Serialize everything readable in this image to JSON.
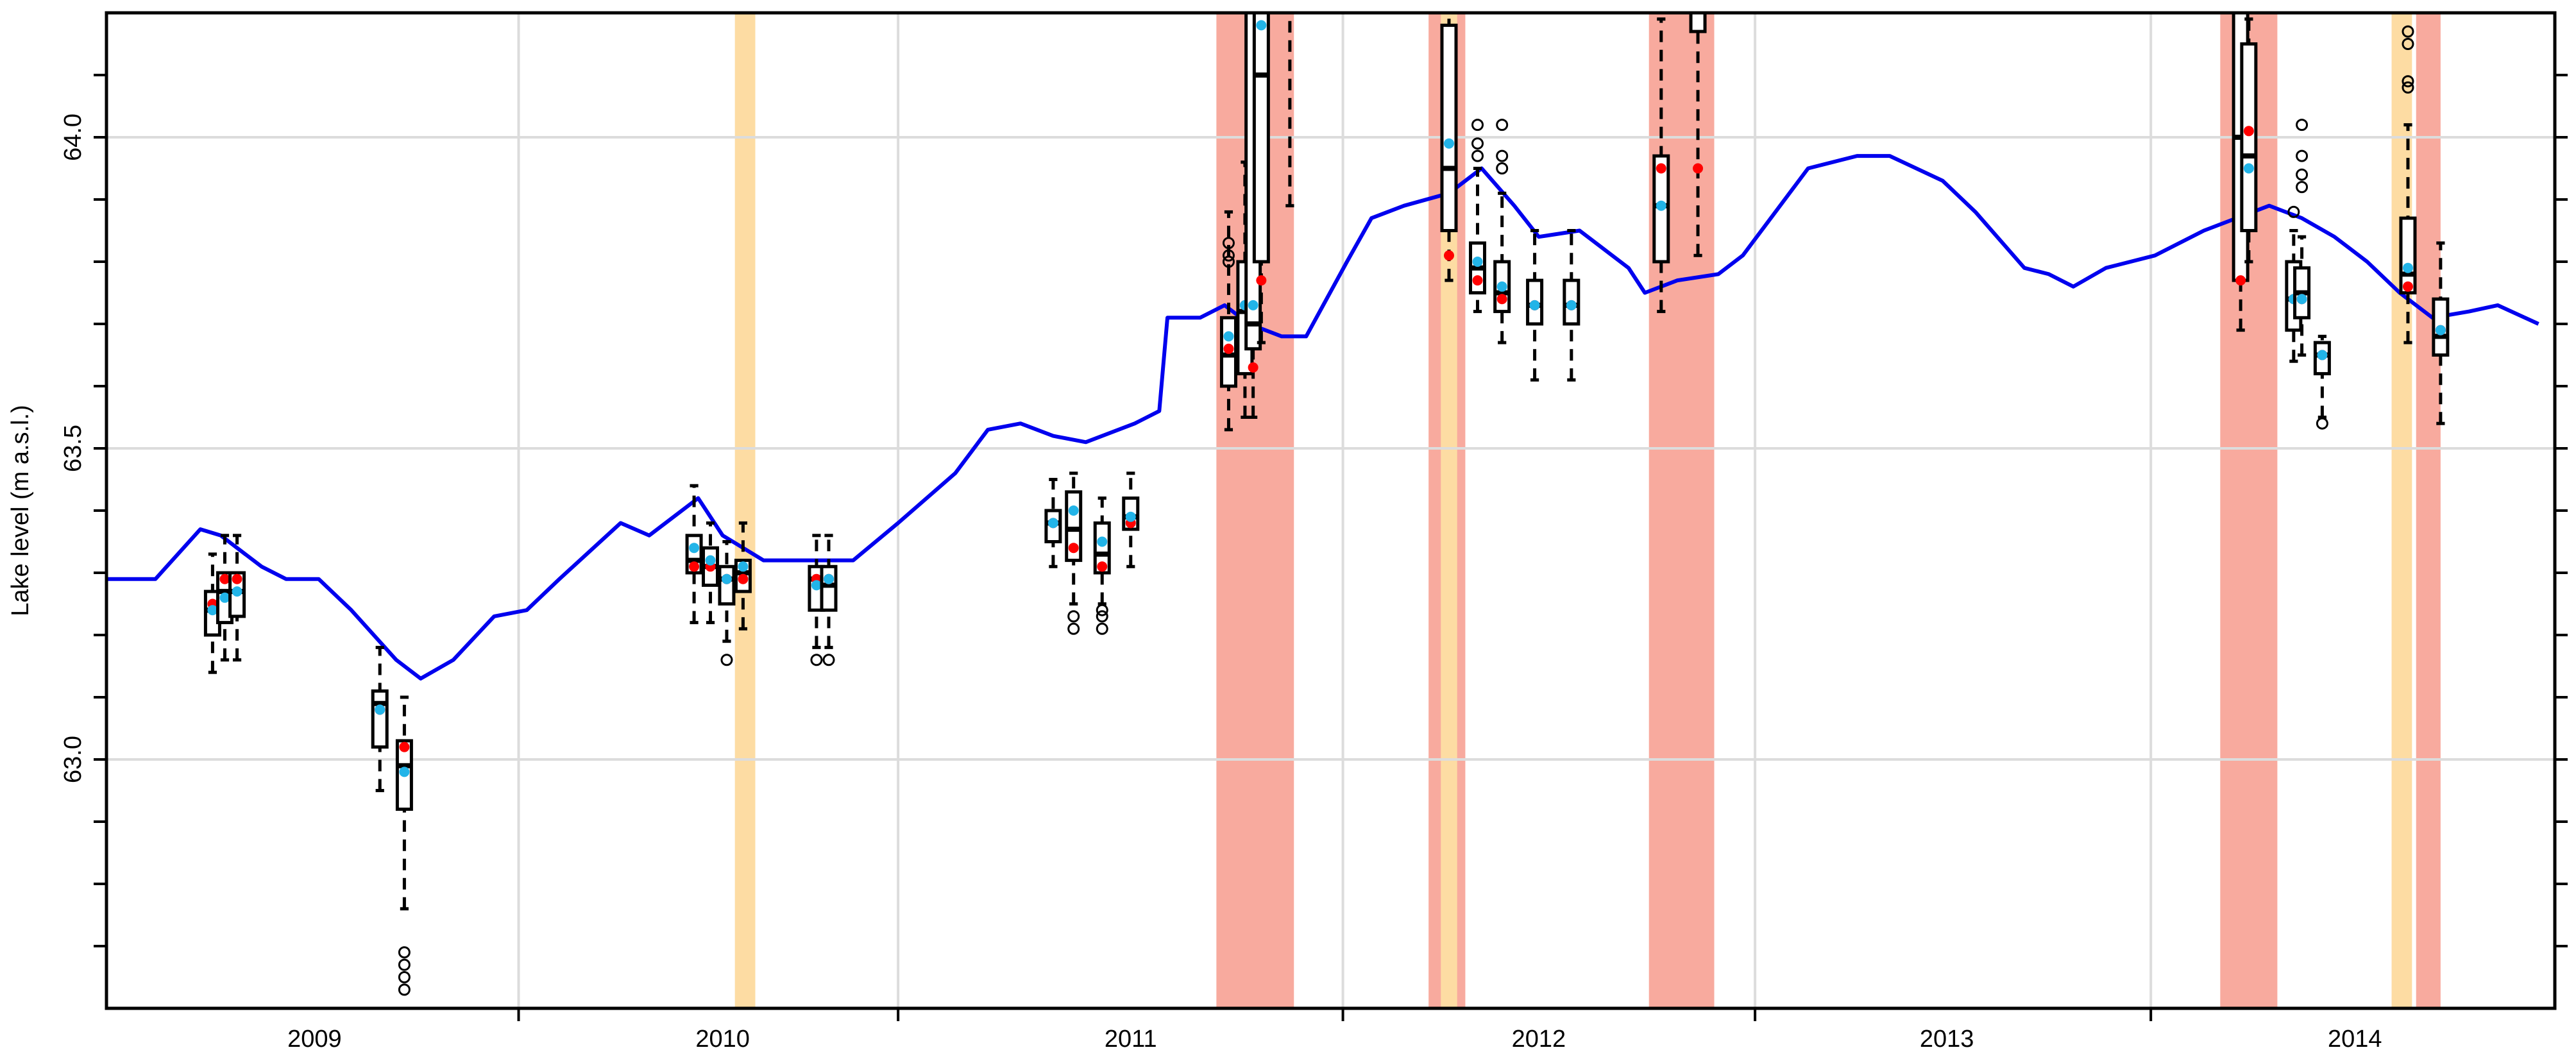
{
  "chart_data": {
    "type": "line",
    "y_label": "Lake level (m a.s.l.)",
    "xlim": [
      2008.49,
      2014.49
    ],
    "ylim": [
      62.6,
      64.2
    ],
    "xticks": [
      2009,
      2010,
      2011,
      2012,
      2013,
      2014
    ],
    "x_boundaries": [
      2009.5,
      2010.43,
      2011.52,
      2012.53,
      2013.5
    ],
    "yticks": [
      {
        "value": 63,
        "label": "63.0"
      },
      {
        "value": 63.5,
        "label": "63.5"
      },
      {
        "value": 64,
        "label": "64.0"
      }
    ],
    "yticks_minor": [
      62.7,
      62.8,
      62.9,
      63.1,
      63.2,
      63.3,
      63.4,
      63.6,
      63.7,
      63.8,
      63.9,
      64.1
    ],
    "grid": true,
    "line": {
      "color": "#0000ee",
      "x": [
        2008.49,
        2008.61,
        2008.72,
        2008.77,
        2008.87,
        2008.93,
        2009.01,
        2009.09,
        2009.2,
        2009.26,
        2009.34,
        2009.44,
        2009.52,
        2009.6,
        2009.75,
        2009.82,
        2009.94,
        2010.0,
        2010.1,
        2010.16,
        2010.32,
        2010.43,
        2010.57,
        2010.65,
        2010.73,
        2010.81,
        2010.89,
        2011.01,
        2011.07,
        2011.09,
        2011.17,
        2011.23,
        2011.29,
        2011.37,
        2011.43,
        2011.53,
        2011.59,
        2011.67,
        2011.78,
        2011.86,
        2011.94,
        2012.0,
        2012.1,
        2012.22,
        2012.26,
        2012.34,
        2012.44,
        2012.5,
        2012.58,
        2012.66,
        2012.78,
        2012.86,
        2012.99,
        2013.07,
        2013.19,
        2013.25,
        2013.31,
        2013.39,
        2013.51,
        2013.63,
        2013.79,
        2013.87,
        2013.95,
        2014.03,
        2014.11,
        2014.19,
        2014.28,
        2014.35,
        2014.45
      ],
      "values": [
        63.29,
        63.29,
        63.37,
        63.36,
        63.31,
        63.29,
        63.29,
        63.24,
        63.16,
        63.13,
        63.16,
        63.23,
        63.24,
        63.29,
        63.38,
        63.36,
        63.42,
        63.36,
        63.32,
        63.32,
        63.32,
        63.38,
        63.46,
        63.53,
        63.54,
        63.52,
        63.51,
        63.54,
        63.56,
        63.71,
        63.71,
        63.73,
        63.7,
        63.68,
        63.68,
        63.8,
        63.87,
        63.89,
        63.91,
        63.95,
        63.89,
        63.84,
        63.85,
        63.79,
        63.75,
        63.77,
        63.78,
        63.81,
        63.88,
        63.95,
        63.97,
        63.97,
        63.93,
        63.88,
        63.79,
        63.78,
        63.76,
        63.79,
        63.81,
        63.85,
        63.89,
        63.87,
        63.84,
        63.8,
        63.75,
        63.71,
        63.72,
        63.73,
        63.7
      ]
    },
    "shaded_periods": [
      {
        "start": 2011.21,
        "end": 2011.4,
        "color": "#f8aa9e"
      },
      {
        "start": 2011.73,
        "end": 2011.82,
        "color": "#f8aa9e"
      },
      {
        "start": 2012.27,
        "end": 2012.43,
        "color": "#f8aa9e"
      },
      {
        "start": 2013.67,
        "end": 2013.81,
        "color": "#f8aa9e"
      },
      {
        "start": 2014.15,
        "end": 2014.21,
        "color": "#f8aa9e"
      },
      {
        "start": 2010.03,
        "end": 2010.08,
        "color": "#fddca3"
      },
      {
        "start": 2011.76,
        "end": 2011.8,
        "color": "#fddca3"
      },
      {
        "start": 2014.09,
        "end": 2014.14,
        "color": "#fddca3"
      }
    ],
    "red_dot_color": "#ff0000",
    "blue_dot_color": "#22b4e8",
    "boxplots": [
      {
        "x": 2008.75,
        "low": 63.14,
        "q1": 63.2,
        "median": 63.24,
        "q3": 63.27,
        "high": 63.33,
        "red": 63.25,
        "blue": 63.24,
        "outliers": []
      },
      {
        "x": 2008.78,
        "low": 63.16,
        "q1": 63.22,
        "median": 63.27,
        "q3": 63.3,
        "high": 63.36,
        "red": 63.29,
        "blue": 63.26,
        "outliers": []
      },
      {
        "x": 2008.81,
        "low": 63.16,
        "q1": 63.23,
        "median": 63.27,
        "q3": 63.3,
        "high": 63.36,
        "red": 63.29,
        "blue": 63.27,
        "outliers": []
      },
      {
        "x": 2009.16,
        "low": 62.95,
        "q1": 63.02,
        "median": 63.09,
        "q3": 63.11,
        "high": 63.18,
        "red": 63.08,
        "blue": 63.08,
        "outliers": []
      },
      {
        "x": 2009.22,
        "low": 62.76,
        "q1": 62.92,
        "median": 62.99,
        "q3": 63.03,
        "high": 63.1,
        "red": 63.02,
        "blue": 62.98,
        "outliers": [
          62.69,
          62.67,
          62.65,
          62.63
        ]
      },
      {
        "x": 2009.93,
        "low": 63.22,
        "q1": 63.3,
        "median": 63.32,
        "q3": 63.36,
        "high": 63.44,
        "red": 63.31,
        "blue": 63.34,
        "outliers": []
      },
      {
        "x": 2009.97,
        "low": 63.22,
        "q1": 63.28,
        "median": 63.31,
        "q3": 63.34,
        "high": 63.38,
        "red": 63.31,
        "blue": 63.32,
        "outliers": []
      },
      {
        "x": 2010.01,
        "low": 63.19,
        "q1": 63.25,
        "median": 63.29,
        "q3": 63.31,
        "high": 63.35,
        "red": 63.29,
        "blue": 63.29,
        "outliers": [
          63.16
        ]
      },
      {
        "x": 2010.05,
        "low": 63.21,
        "q1": 63.27,
        "median": 63.3,
        "q3": 63.32,
        "high": 63.38,
        "red": 63.29,
        "blue": 63.31,
        "outliers": []
      },
      {
        "x": 2010.23,
        "low": 63.18,
        "q1": 63.24,
        "median": 63.29,
        "q3": 63.31,
        "high": 63.36,
        "red": 63.29,
        "blue": 63.28,
        "outliers": [
          63.16
        ]
      },
      {
        "x": 2010.26,
        "low": 63.18,
        "q1": 63.24,
        "median": 63.28,
        "q3": 63.31,
        "high": 63.36,
        "red": 63.29,
        "blue": 63.29,
        "outliers": [
          63.16
        ]
      },
      {
        "x": 2010.81,
        "low": 63.31,
        "q1": 63.35,
        "median": 63.38,
        "q3": 63.4,
        "high": 63.45,
        "red": 63.38,
        "blue": 63.38,
        "outliers": []
      },
      {
        "x": 2010.86,
        "low": 63.25,
        "q1": 63.32,
        "median": 63.37,
        "q3": 63.43,
        "high": 63.46,
        "red": 63.34,
        "blue": 63.4,
        "outliers": [
          63.23,
          63.21
        ]
      },
      {
        "x": 2010.93,
        "low": 63.25,
        "q1": 63.3,
        "median": 63.33,
        "q3": 63.38,
        "high": 63.42,
        "red": 63.31,
        "blue": 63.35,
        "outliers": [
          63.24,
          63.23,
          63.21
        ]
      },
      {
        "x": 2011.0,
        "low": 63.31,
        "q1": 63.37,
        "median": 63.39,
        "q3": 63.42,
        "high": 63.46,
        "red": 63.38,
        "blue": 63.39,
        "outliers": []
      },
      {
        "x": 2011.24,
        "low": 63.53,
        "q1": 63.6,
        "median": 63.65,
        "q3": 63.71,
        "high": 63.88,
        "red": 63.66,
        "blue": 63.68,
        "outliers": [
          63.83,
          63.81,
          63.8
        ]
      },
      {
        "x": 2011.28,
        "low": 63.55,
        "q1": 63.62,
        "median": 63.72,
        "q3": 63.8,
        "high": 63.96,
        "red": 63.73,
        "blue": 63.73,
        "outliers": []
      },
      {
        "x": 2011.3,
        "low": 63.55,
        "q1": 63.66,
        "median": 63.7,
        "q3": 64.3,
        "high": 64.5,
        "red": 63.63,
        "blue": 63.73,
        "outliers": []
      },
      {
        "x": 2011.32,
        "low": 63.67,
        "q1": 63.8,
        "median": 64.1,
        "q3": 64.3,
        "high": 64.5,
        "red": 63.77,
        "blue": 64.18,
        "outliers": []
      },
      {
        "x": 2011.39,
        "low": 63.89,
        "q1": 64.25,
        "median": 64.3,
        "q3": 64.35,
        "high": 64.4,
        "red": null,
        "blue": null,
        "outliers": []
      },
      {
        "x": 2011.78,
        "low": 63.77,
        "q1": 63.85,
        "median": 63.95,
        "q3": 64.18,
        "high": 64.3,
        "red": 63.81,
        "blue": 63.99,
        "outliers": []
      },
      {
        "x": 2011.85,
        "low": 63.72,
        "q1": 63.75,
        "median": 63.79,
        "q3": 63.83,
        "high": 63.95,
        "red": 63.77,
        "blue": 63.8,
        "outliers": [
          64.02,
          63.99,
          63.97
        ]
      },
      {
        "x": 2011.91,
        "low": 63.67,
        "q1": 63.72,
        "median": 63.75,
        "q3": 63.8,
        "high": 63.91,
        "red": 63.74,
        "blue": 63.76,
        "outliers": [
          64.02,
          63.97,
          63.95
        ]
      },
      {
        "x": 2011.99,
        "low": 63.61,
        "q1": 63.7,
        "median": 63.73,
        "q3": 63.77,
        "high": 63.85,
        "red": 63.73,
        "blue": 63.73,
        "outliers": []
      },
      {
        "x": 2012.08,
        "low": 63.61,
        "q1": 63.7,
        "median": 63.73,
        "q3": 63.77,
        "high": 63.85,
        "red": 63.73,
        "blue": 63.73,
        "outliers": []
      },
      {
        "x": 2012.3,
        "low": 63.72,
        "q1": 63.8,
        "median": 63.89,
        "q3": 63.97,
        "high": 64.19,
        "red": 63.95,
        "blue": 63.89,
        "outliers": []
      },
      {
        "x": 2012.39,
        "low": 63.81,
        "q1": 64.17,
        "median": 64.25,
        "q3": 64.3,
        "high": 64.4,
        "red": 63.95,
        "blue": null,
        "outliers": []
      },
      {
        "x": 2013.72,
        "low": 63.69,
        "q1": 63.77,
        "median": 64.0,
        "q3": 64.3,
        "high": 64.4,
        "red": 63.77,
        "blue": null,
        "outliers": []
      },
      {
        "x": 2013.74,
        "low": 63.8,
        "q1": 63.85,
        "median": 63.97,
        "q3": 64.15,
        "high": 64.19,
        "red": 64.01,
        "blue": 63.95,
        "outliers": []
      },
      {
        "x": 2013.85,
        "low": 63.64,
        "q1": 63.69,
        "median": 63.74,
        "q3": 63.8,
        "high": 63.85,
        "red": 63.74,
        "blue": 63.74,
        "outliers": [
          63.88
        ]
      },
      {
        "x": 2013.87,
        "low": 63.65,
        "q1": 63.71,
        "median": 63.75,
        "q3": 63.79,
        "high": 63.84,
        "red": 63.74,
        "blue": 63.74,
        "outliers": [
          64.02,
          63.97,
          63.94,
          63.92
        ]
      },
      {
        "x": 2013.92,
        "low": 63.55,
        "q1": 63.62,
        "median": 63.65,
        "q3": 63.67,
        "high": 63.68,
        "red": 63.65,
        "blue": 63.65,
        "outliers": [
          63.54
        ]
      },
      {
        "x": 2014.13,
        "low": 63.67,
        "q1": 63.75,
        "median": 63.78,
        "q3": 63.87,
        "high": 64.02,
        "red": 63.76,
        "blue": 63.79,
        "outliers": [
          64.17,
          64.15,
          64.09,
          64.08
        ]
      },
      {
        "x": 2014.21,
        "low": 63.54,
        "q1": 63.65,
        "median": 63.68,
        "q3": 63.74,
        "high": 63.83,
        "red": 63.69,
        "blue": 63.69,
        "outliers": []
      }
    ]
  }
}
